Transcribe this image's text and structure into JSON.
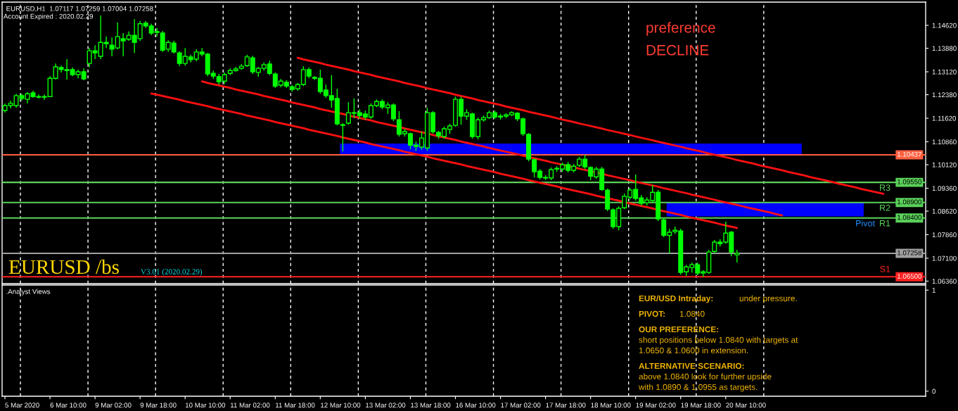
{
  "chart_data": [
    {
      "type": "candlestick",
      "title": "EURUSD,H1  1.07117 1.07259 1.07004 1.07258",
      "annotations": [
        "Account Expired : 2020.02.29",
        "preference",
        "DECLINE",
        "EURUSD /bs",
        "V3.01 (2020.02.29)",
        {
          "text": "R3",
          "y": 1.0955
        },
        {
          "text": "R2",
          "y": 1.089
        },
        {
          "text": "R1",
          "y": 1.084
        },
        {
          "text": "Pivot",
          "y": 1.084
        },
        {
          "text": "S1",
          "y": 1.065
        }
      ],
      "color": "#00ff00",
      "categories": [
        null,
        null,
        null,
        null,
        null,
        null,
        null,
        null,
        null,
        null,
        null,
        null,
        null,
        null,
        null,
        null,
        null,
        null,
        null,
        null,
        null,
        null,
        null,
        null,
        null,
        null,
        null,
        null,
        null,
        null,
        null,
        null,
        null,
        null,
        null,
        null,
        null,
        null,
        null,
        null,
        null,
        null,
        null,
        null,
        null,
        null,
        null,
        null,
        null,
        null,
        null,
        null,
        null,
        null,
        null,
        null,
        null,
        null,
        null,
        null,
        null,
        null,
        null,
        null,
        null,
        null,
        null,
        null,
        null,
        null,
        null,
        null,
        null,
        null,
        null,
        null,
        null,
        null,
        null,
        null,
        null,
        null,
        null,
        null,
        null,
        null,
        null,
        null,
        null,
        null,
        null,
        null,
        null,
        null,
        null,
        null,
        null,
        null,
        null,
        null,
        null,
        null,
        null,
        null,
        null,
        null,
        null,
        null,
        null,
        null,
        null,
        null,
        null,
        null,
        null,
        null,
        null,
        null,
        null,
        null,
        null,
        null,
        null,
        null,
        null,
        null,
        null,
        null,
        null,
        null,
        null,
        null,
        null,
        null,
        null,
        null,
        null,
        null,
        null,
        null,
        null,
        null,
        null,
        null,
        null,
        null,
        null,
        null,
        null,
        null,
        null,
        null,
        null,
        null,
        null,
        null,
        null,
        null,
        null,
        null,
        null,
        null,
        null,
        null
      ],
      "ohlc": [
        [
          1.1187,
          1.121,
          1.118,
          1.1203
        ],
        [
          1.1203,
          1.1219,
          1.1194,
          1.121
        ],
        [
          1.1203,
          1.1241,
          1.1196,
          1.1235
        ],
        [
          1.1235,
          1.1241,
          1.1219,
          1.1226
        ],
        [
          1.1223,
          1.1246,
          1.121,
          1.1241
        ],
        [
          1.1244,
          1.1251,
          1.1228,
          1.1232
        ],
        [
          1.1232,
          1.1239,
          1.1226,
          1.123
        ],
        [
          1.123,
          1.1239,
          1.1221,
          1.1232
        ],
        [
          1.1232,
          1.1298,
          1.123,
          1.1291
        ],
        [
          1.1291,
          1.1339,
          1.1287,
          1.1328
        ],
        [
          1.1326,
          1.1332,
          1.131,
          1.1319
        ],
        [
          1.1319,
          1.1353,
          1.1287,
          1.1316
        ],
        [
          1.1319,
          1.1326,
          1.1298,
          1.1303
        ],
        [
          1.1303,
          1.1319,
          1.1291,
          1.1312
        ],
        [
          1.1312,
          1.1323,
          1.1285,
          1.1289
        ],
        [
          1.1339,
          1.1389,
          1.1326,
          1.138
        ],
        [
          1.138,
          1.1398,
          1.1353,
          1.1373
        ],
        [
          1.1362,
          1.1494,
          1.1353,
          1.1407
        ],
        [
          1.1407,
          1.1426,
          1.1389,
          1.1403
        ],
        [
          1.1398,
          1.1423,
          1.1362,
          1.1385
        ],
        [
          1.1389,
          1.1471,
          1.1385,
          1.1426
        ],
        [
          1.1419,
          1.1437,
          1.1362,
          1.1412
        ],
        [
          1.1417,
          1.1442,
          1.1412,
          1.143
        ],
        [
          1.143,
          1.1482,
          1.1373,
          1.1407
        ],
        [
          1.1419,
          1.1476,
          1.1412,
          1.1467
        ],
        [
          1.1469,
          1.1476,
          1.1453,
          1.146
        ],
        [
          1.146,
          1.1467,
          1.143,
          1.1437
        ],
        [
          1.1442,
          1.1453,
          1.1426,
          1.1439
        ],
        [
          1.1437,
          1.1444,
          1.1376,
          1.1382
        ],
        [
          1.1385,
          1.1414,
          1.1376,
          1.1407
        ],
        [
          1.1405,
          1.1412,
          1.1371,
          1.1376
        ],
        [
          1.1373,
          1.1378,
          1.133,
          1.1339
        ],
        [
          1.1339,
          1.1389,
          1.1332,
          1.1362
        ],
        [
          1.136,
          1.1367,
          1.1342,
          1.1351
        ],
        [
          1.1353,
          1.1385,
          1.1346,
          1.1376
        ],
        [
          1.1376,
          1.1389,
          1.1362,
          1.1369
        ],
        [
          1.1369,
          1.1373,
          1.1298,
          1.1305
        ],
        [
          1.1307,
          1.1316,
          1.1289,
          1.1298
        ],
        [
          1.1296,
          1.1305,
          1.1271,
          1.128
        ],
        [
          1.1282,
          1.131,
          1.1273,
          1.1303
        ],
        [
          1.1307,
          1.1323,
          1.1301,
          1.1316
        ],
        [
          1.1316,
          1.1328,
          1.1312,
          1.1321
        ],
        [
          1.1323,
          1.1337,
          1.1319,
          1.133
        ],
        [
          1.1332,
          1.1367,
          1.1328,
          1.136
        ],
        [
          1.1357,
          1.1364,
          1.1305,
          1.1312
        ],
        [
          1.131,
          1.1328,
          1.1296,
          1.1323
        ],
        [
          1.1323,
          1.1342,
          1.1316,
          1.1335
        ],
        [
          1.1337,
          1.1348,
          1.1301,
          1.1307
        ],
        [
          1.1305,
          1.131,
          1.126,
          1.1266
        ],
        [
          1.1269,
          1.1289,
          1.1262,
          1.1282
        ],
        [
          1.1278,
          1.1285,
          1.126,
          1.1266
        ],
        [
          1.1264,
          1.1269,
          1.1248,
          1.1255
        ],
        [
          1.1257,
          1.1276,
          1.1251,
          1.1271
        ],
        [
          1.1271,
          1.133,
          1.1266,
          1.1319
        ],
        [
          1.1319,
          1.1326,
          1.1291,
          1.1298
        ],
        [
          1.1294,
          1.1298,
          1.1285,
          1.1291
        ],
        [
          1.1291,
          1.1319,
          1.1241,
          1.1248
        ],
        [
          1.1253,
          1.1271,
          1.1228,
          1.1235
        ],
        [
          1.1235,
          1.1301,
          1.1196,
          1.1221
        ],
        [
          1.1226,
          1.1257,
          1.1139,
          1.1144
        ],
        [
          1.1141,
          1.1146,
          1.1055,
          1.1139
        ],
        [
          1.1146,
          1.1214,
          1.1141,
          1.118
        ],
        [
          1.1178,
          1.1226,
          1.1162,
          1.118
        ],
        [
          1.118,
          1.1191,
          1.116,
          1.1171
        ],
        [
          1.1176,
          1.1187,
          1.1157,
          1.1166
        ],
        [
          1.1166,
          1.121,
          1.116,
          1.1203
        ],
        [
          1.1203,
          1.1223,
          1.1198,
          1.1216
        ],
        [
          1.1216,
          1.1223,
          1.1191,
          1.1198
        ],
        [
          1.1196,
          1.1214,
          1.1176,
          1.1205
        ],
        [
          1.1205,
          1.121,
          1.1153,
          1.116
        ],
        [
          1.1157,
          1.1185,
          1.1103,
          1.111
        ],
        [
          1.1112,
          1.1128,
          1.1103,
          1.1119
        ],
        [
          1.1112,
          1.1116,
          1.1062,
          1.1075
        ],
        [
          1.1075,
          1.1087,
          1.1057,
          1.1071
        ],
        [
          1.1069,
          1.1119,
          1.106,
          1.1098
        ],
        [
          1.1066,
          1.1196,
          1.1057,
          1.118
        ],
        [
          1.118,
          1.1185,
          1.1112,
          1.1119
        ],
        [
          1.1116,
          1.1121,
          1.1096,
          1.1105
        ],
        [
          1.1103,
          1.1135,
          1.1096,
          1.1128
        ],
        [
          1.1126,
          1.1144,
          1.1112,
          1.1137
        ],
        [
          1.1139,
          1.1232,
          1.1135,
          1.1223
        ],
        [
          1.1223,
          1.1232,
          1.1141,
          1.1169
        ],
        [
          1.1169,
          1.1191,
          1.1157,
          1.118
        ],
        [
          1.1176,
          1.118,
          1.1096,
          1.1103
        ],
        [
          1.1103,
          1.1164,
          1.1094,
          1.1157
        ],
        [
          1.1157,
          1.1171,
          1.1151,
          1.1164
        ],
        [
          1.1164,
          1.1187,
          1.116,
          1.118
        ],
        [
          1.118,
          1.1187,
          1.116,
          1.1166
        ],
        [
          1.1166,
          1.1176,
          1.1157,
          1.1169
        ],
        [
          1.1169,
          1.1178,
          1.1162,
          1.1173
        ],
        [
          1.1173,
          1.1185,
          1.1169,
          1.118
        ],
        [
          1.1178,
          1.1182,
          1.1153,
          1.116
        ],
        [
          1.116,
          1.1164,
          1.1105,
          1.1112
        ],
        [
          1.111,
          1.1114,
          1.1023,
          1.103
        ],
        [
          1.1028,
          1.1032,
          1.0971,
          1.0989
        ],
        [
          1.0991,
          1.0998,
          1.0964,
          1.0971
        ],
        [
          1.0971,
          1.0978,
          1.0962,
          1.0969
        ],
        [
          1.0969,
          1.1003,
          1.0962,
          1.0996
        ],
        [
          1.0998,
          1.1007,
          1.0989,
          1.1
        ],
        [
          1.0998,
          1.1019,
          1.0989,
          1.1012
        ],
        [
          1.1012,
          1.1021,
          1.0987,
          1.0994
        ],
        [
          1.0994,
          1.1014,
          1.0987,
          1.1007
        ],
        [
          1.101,
          1.1037,
          1.1005,
          1.103
        ],
        [
          1.103,
          1.1044,
          1.0998,
          1.1005
        ],
        [
          1.1003,
          1.1007,
          1.0962,
          1.0975
        ],
        [
          1.0973,
          1.1005,
          1.0966,
          1.0998
        ],
        [
          1.0998,
          1.1005,
          1.0928,
          1.0932
        ],
        [
          1.093,
          1.0935,
          1.0862,
          1.0869
        ],
        [
          1.0866,
          1.0871,
          1.0805,
          1.0812
        ],
        [
          1.0812,
          1.0878,
          1.08,
          1.0871
        ],
        [
          1.0873,
          1.0919,
          1.0869,
          1.091
        ],
        [
          1.0907,
          1.0937,
          1.09,
          1.093
        ],
        [
          1.0932,
          1.098,
          1.0896,
          1.0903
        ],
        [
          1.0905,
          1.0914,
          1.088,
          1.0887
        ],
        [
          1.0889,
          1.0907,
          1.088,
          1.0898
        ],
        [
          1.0896,
          1.0946,
          1.0889,
          1.0923
        ],
        [
          1.0923,
          1.093,
          1.083,
          1.0837
        ],
        [
          1.0834,
          1.0839,
          1.0778,
          1.0784
        ],
        [
          1.0784,
          1.0805,
          1.0725,
          1.0794
        ],
        [
          1.0796,
          1.0812,
          1.0789,
          1.08
        ],
        [
          1.0798,
          1.0805,
          1.0657,
          1.0664
        ],
        [
          1.0666,
          1.0689,
          1.0653,
          1.0682
        ],
        [
          1.068,
          1.0696,
          1.0664,
          1.0689
        ],
        [
          1.0689,
          1.0696,
          1.0655,
          1.0662
        ],
        [
          1.0662,
          1.0671,
          1.065,
          1.0666
        ],
        [
          1.0664,
          1.0737,
          1.0659,
          1.073
        ],
        [
          1.0732,
          1.0769,
          1.0725,
          1.0762
        ],
        [
          1.0762,
          1.0771,
          1.0748,
          1.0757
        ],
        [
          1.0762,
          1.0828,
          1.0757,
          1.0791
        ],
        [
          1.0794,
          1.0798,
          1.0716,
          1.073
        ],
        [
          1.0721,
          1.0737,
          1.0696,
          1.0726
        ],
        null,
        null,
        null,
        null,
        null,
        null,
        null,
        null,
        null,
        null,
        null,
        null,
        null,
        null,
        null,
        null,
        null,
        null,
        null,
        null,
        null,
        null,
        null,
        null,
        null,
        null,
        null,
        null,
        null,
        null,
        null,
        null,
        null
      ],
      "series": [
        {
          "type": "line",
          "color": "#ff1010",
          "values": [
            null,
            null,
            null,
            null,
            null,
            null,
            null,
            null,
            null,
            null,
            null,
            null,
            null,
            null,
            null,
            null,
            null,
            null,
            null,
            null,
            null,
            null,
            null,
            null,
            null,
            null,
            null,
            null,
            null,
            null,
            null,
            null,
            null,
            null,
            null,
            null,
            null,
            null,
            null,
            null,
            null,
            null,
            null,
            null,
            null,
            null,
            null,
            null,
            null,
            null,
            null,
            null,
            1.1357,
            1.1352,
            1.1348,
            1.1344,
            1.134,
            1.1335,
            1.1331,
            1.1327,
            1.1323,
            1.1319,
            1.1314,
            1.131,
            1.1306,
            1.1302,
            1.1297,
            1.1293,
            1.1289,
            1.1285,
            1.1281,
            1.1276,
            1.1272,
            1.1268,
            1.1264,
            1.1259,
            1.1255,
            1.1251,
            1.1247,
            1.1243,
            1.1238,
            1.1234,
            1.123,
            1.1226,
            1.1221,
            1.1217,
            1.1213,
            1.1209,
            1.1205,
            1.12,
            1.1196,
            1.1192,
            1.1188,
            1.1183,
            1.1179,
            1.1175,
            1.1171,
            1.1167,
            1.1162,
            1.1158,
            1.1154,
            1.115,
            1.1145,
            1.1141,
            1.1137,
            1.1133,
            1.1129,
            1.1124,
            1.112,
            1.1116,
            1.1112,
            1.1108,
            1.1103,
            1.1099,
            1.1095,
            1.1091,
            1.1086,
            1.1082,
            1.1078,
            1.1074,
            1.107,
            1.1065,
            1.1061,
            1.1057,
            1.1053,
            1.1048,
            1.1044,
            1.104,
            1.1036,
            1.1032,
            1.1027,
            1.1023,
            1.1019,
            1.1015,
            1.101,
            1.1006,
            1.1002,
            1.0998,
            1.0994,
            1.0989,
            1.0985,
            1.0981,
            1.0977,
            1.0972,
            1.0968,
            1.0964,
            1.096,
            1.0956,
            1.0951,
            1.0947,
            1.0943,
            1.0939,
            1.0934,
            1.093,
            1.0926,
            1.0922,
            1.0918,
            null,
            null,
            null,
            null,
            null,
            null,
            null
          ]
        },
        {
          "type": "line",
          "color": "#ff1010",
          "values": [
            null,
            null,
            null,
            null,
            null,
            null,
            null,
            null,
            null,
            null,
            null,
            null,
            null,
            null,
            null,
            null,
            null,
            null,
            null,
            null,
            null,
            null,
            null,
            null,
            null,
            null,
            null,
            null,
            null,
            null,
            null,
            null,
            null,
            null,
            null,
            1.1281,
            1.1276,
            1.1272,
            1.1268,
            1.1264,
            1.126,
            1.1255,
            1.1251,
            1.1247,
            1.1243,
            1.1239,
            1.1234,
            1.123,
            1.1226,
            1.1222,
            1.1218,
            1.1213,
            1.1209,
            1.1205,
            1.1201,
            1.1197,
            1.1192,
            1.1188,
            1.1184,
            1.118,
            1.1176,
            1.1171,
            1.1167,
            1.1163,
            1.1159,
            1.1155,
            1.115,
            1.1146,
            1.1142,
            1.1138,
            1.1134,
            1.1129,
            1.1125,
            1.1121,
            1.1117,
            1.1113,
            1.1108,
            1.1104,
            1.11,
            1.1096,
            1.1092,
            1.1087,
            1.1083,
            1.1079,
            1.1075,
            1.1071,
            1.1066,
            1.1062,
            1.1058,
            1.1054,
            1.105,
            1.1046,
            1.1041,
            1.1037,
            1.1033,
            1.1029,
            1.1025,
            1.102,
            1.1016,
            1.1012,
            1.1008,
            1.1004,
            1.0999,
            1.0995,
            1.0991,
            1.0987,
            1.0983,
            1.0978,
            1.0974,
            1.097,
            1.0966,
            1.0962,
            1.0957,
            1.0953,
            1.0949,
            1.0945,
            1.0941,
            1.0936,
            1.0932,
            1.0928,
            1.0924,
            1.092,
            1.0915,
            1.0911,
            1.0907,
            1.0903,
            1.0899,
            1.0894,
            1.089,
            1.0886,
            1.0882,
            1.0878,
            1.0873,
            1.0869,
            1.0865,
            1.0861,
            1.0857,
            1.0852,
            1.0848,
            null,
            null,
            null,
            null,
            null,
            null,
            null,
            null,
            null,
            null,
            null,
            null,
            null,
            null,
            null,
            null,
            null,
            null,
            null,
            null,
            null,
            null,
            null,
            null,
            null
          ]
        },
        {
          "type": "line",
          "color": "#ff1010",
          "values": [
            null,
            null,
            null,
            null,
            null,
            null,
            null,
            null,
            null,
            null,
            null,
            null,
            null,
            null,
            null,
            null,
            null,
            null,
            null,
            null,
            null,
            null,
            null,
            null,
            null,
            null,
            1.1242,
            1.1238,
            1.1234,
            1.123,
            1.1226,
            1.1222,
            1.1217,
            1.1213,
            1.1209,
            1.1205,
            1.1201,
            1.1196,
            1.1192,
            1.1188,
            1.1184,
            1.118,
            1.1176,
            1.1171,
            1.1167,
            1.1163,
            1.1159,
            1.1155,
            1.115,
            1.1146,
            1.1142,
            1.1138,
            1.1134,
            1.113,
            1.1125,
            1.1121,
            1.1117,
            1.1113,
            1.1109,
            1.1105,
            1.11,
            1.1096,
            1.1092,
            1.1088,
            1.1084,
            1.1079,
            1.1075,
            1.1071,
            1.1067,
            1.1063,
            1.1059,
            1.1054,
            1.105,
            1.1046,
            1.1042,
            1.1038,
            1.1033,
            1.1029,
            1.1025,
            1.1021,
            1.1017,
            1.1013,
            1.1008,
            1.1004,
            1.1,
            1.0996,
            1.0992,
            1.0988,
            1.0983,
            1.0979,
            1.0975,
            1.0971,
            1.0967,
            1.0962,
            1.0958,
            1.0954,
            1.095,
            1.0946,
            1.0942,
            1.0937,
            1.0933,
            1.0929,
            1.0925,
            1.0921,
            1.0917,
            1.0912,
            1.0908,
            1.0904,
            1.09,
            1.0896,
            1.0891,
            1.0887,
            1.0883,
            1.0879,
            1.0875,
            1.0871,
            1.0866,
            1.0862,
            1.0858,
            1.0854,
            1.085,
            1.0845,
            1.0841,
            1.0837,
            1.0833,
            1.0829,
            1.0825,
            1.082,
            1.0816,
            1.0812,
            1.0808,
            null,
            null,
            null,
            null,
            null,
            null,
            null,
            null,
            null,
            null,
            null,
            null,
            null,
            null,
            null,
            null,
            null,
            null,
            null,
            null,
            null,
            null,
            null,
            null,
            null,
            null,
            null,
            null,
            null,
            null,
            null,
            null,
            null
          ]
        }
      ],
      "bands": [
        {
          "axis": "y",
          "from": 1.10437,
          "to": 1.108,
          "color": "#0000ff"
        },
        {
          "axis": "y",
          "from": 1.0845,
          "to": 1.089,
          "color": "#0000ff"
        }
      ],
      "ylim": [
        1.0628,
        1.1537
      ],
      "yticks": [
        {
          "value": 1.1462,
          "label": "1.14620"
        },
        {
          "value": 1.1388,
          "label": "1.13880"
        },
        {
          "value": 1.1312,
          "label": "1.13120"
        },
        {
          "value": 1.1238,
          "label": "1.12380"
        },
        {
          "value": 1.1162,
          "label": "1.11620"
        },
        {
          "value": 1.1086,
          "label": "1.10860"
        },
        {
          "value": 1.1012,
          "label": "1.10120"
        },
        {
          "value": 1.0936,
          "label": "1.09360"
        },
        {
          "value": 1.0862,
          "label": "1.08620"
        },
        {
          "value": 1.0786,
          "label": "1.07860"
        },
        {
          "value": 1.071,
          "label": "1.07100"
        },
        {
          "value": 1.0636,
          "label": "1.06360"
        }
      ],
      "tick_labels": "y",
      "ref_lines": [
        {
          "axis": "y",
          "value": 1.10437,
          "label": "1.10437",
          "color": "#ff6040"
        },
        {
          "axis": "y",
          "value": 1.0955,
          "label": "1.09550",
          "color": "#5ad25a"
        },
        {
          "axis": "y",
          "value": 1.089,
          "label": "1.08900",
          "color": "#5ad25a"
        },
        {
          "axis": "y",
          "value": 1.084,
          "label": "1.08400",
          "color": "#5ad25a"
        },
        {
          "axis": "y",
          "value": 1.07258,
          "label": "1.07258",
          "color": "#a0a0a0"
        },
        {
          "axis": "y",
          "value": 1.065,
          "label": "1.06500",
          "color": "#ff2020"
        }
      ]
    },
    {
      "type": "line",
      "title": ".Analyst Views",
      "annotations": [
        "EUR/USD Intraday:",
        "under pressure.",
        "PIVOT:",
        "1.0840",
        "OUR PREFERENCE:",
        "short positions below 1.0840 with targets at",
        "1.0650 & 1.0600 in extension.",
        "ALTERNATIVE SCENARIO:",
        "above 1.0840 look for further upside",
        "with 1.0890 & 1.0955 as targets."
      ],
      "categories": [
        "5 Mar 2020",
        null,
        null,
        null,
        null,
        null,
        null,
        null,
        "6 Mar 10:00",
        null,
        null,
        null,
        null,
        null,
        null,
        null,
        "9 Mar 02:00",
        null,
        null,
        null,
        null,
        null,
        null,
        null,
        "9 Mar 18:00",
        null,
        null,
        null,
        null,
        null,
        null,
        null,
        "10 Mar 10:00",
        null,
        null,
        null,
        null,
        null,
        null,
        null,
        "11 Mar 02:00",
        null,
        null,
        null,
        null,
        null,
        null,
        null,
        "11 Mar 18:00",
        null,
        null,
        null,
        null,
        null,
        null,
        null,
        "12 Mar 10:00",
        null,
        null,
        null,
        null,
        null,
        null,
        null,
        "13 Mar 02:00",
        null,
        null,
        null,
        null,
        null,
        null,
        null,
        "13 Mar 18:00",
        null,
        null,
        null,
        null,
        null,
        null,
        null,
        "16 Mar 10:00",
        null,
        null,
        null,
        null,
        null,
        null,
        null,
        "17 Mar 02:00",
        null,
        null,
        null,
        null,
        null,
        null,
        null,
        "17 Mar 18:00",
        null,
        null,
        null,
        null,
        null,
        null,
        null,
        "18 Mar 10:00",
        null,
        null,
        null,
        null,
        null,
        null,
        null,
        "19 Mar 02:00",
        null,
        null,
        null,
        null,
        null,
        null,
        null,
        "19 Mar 18:00",
        null,
        null,
        null,
        null,
        null,
        null,
        null,
        "20 Mar 10:00",
        null,
        null,
        null,
        null,
        null,
        null,
        null,
        null,
        null,
        null,
        null,
        null,
        null,
        null,
        null,
        null,
        null,
        null,
        null,
        null,
        null,
        null,
        null,
        null,
        null,
        null,
        null,
        null,
        null,
        null,
        null,
        null,
        null,
        null,
        null
      ],
      "values": [
        null,
        null,
        null,
        null,
        null,
        null,
        null,
        null,
        null,
        null,
        null,
        null,
        null,
        null,
        null,
        null,
        null,
        null,
        null,
        null,
        null,
        null,
        null,
        null,
        null,
        null,
        null,
        null,
        null,
        null,
        null,
        null,
        null,
        null,
        null,
        null,
        null,
        null,
        null,
        null,
        null,
        null,
        null,
        null,
        null,
        null,
        null,
        null,
        null,
        null,
        null,
        null,
        null,
        null,
        null,
        null,
        null,
        null,
        null,
        null,
        null,
        null,
        null,
        null,
        null,
        null,
        null,
        null,
        null,
        null,
        null,
        null,
        null,
        null,
        null,
        null,
        null,
        null,
        null,
        null,
        null,
        null,
        null,
        null,
        null,
        null,
        null,
        null,
        null,
        null,
        null,
        null,
        null,
        null,
        null,
        null,
        null,
        null,
        null,
        null,
        null,
        null,
        null,
        null,
        null,
        null,
        null,
        null,
        null,
        null,
        null,
        null,
        null,
        null,
        null,
        null,
        null,
        null,
        null,
        null,
        null,
        null,
        null,
        null,
        null,
        null,
        null,
        null,
        null,
        null,
        null,
        null,
        null,
        null,
        null,
        null,
        null,
        null,
        null,
        null,
        null,
        null,
        null,
        null,
        null,
        null,
        null,
        null,
        null,
        null,
        null,
        null,
        null,
        null,
        null,
        null,
        null,
        null,
        null,
        null,
        null,
        null,
        null,
        null
      ],
      "ylim": [
        -0.05,
        1.05
      ],
      "yticks": [
        0,
        1
      ]
    }
  ]
}
